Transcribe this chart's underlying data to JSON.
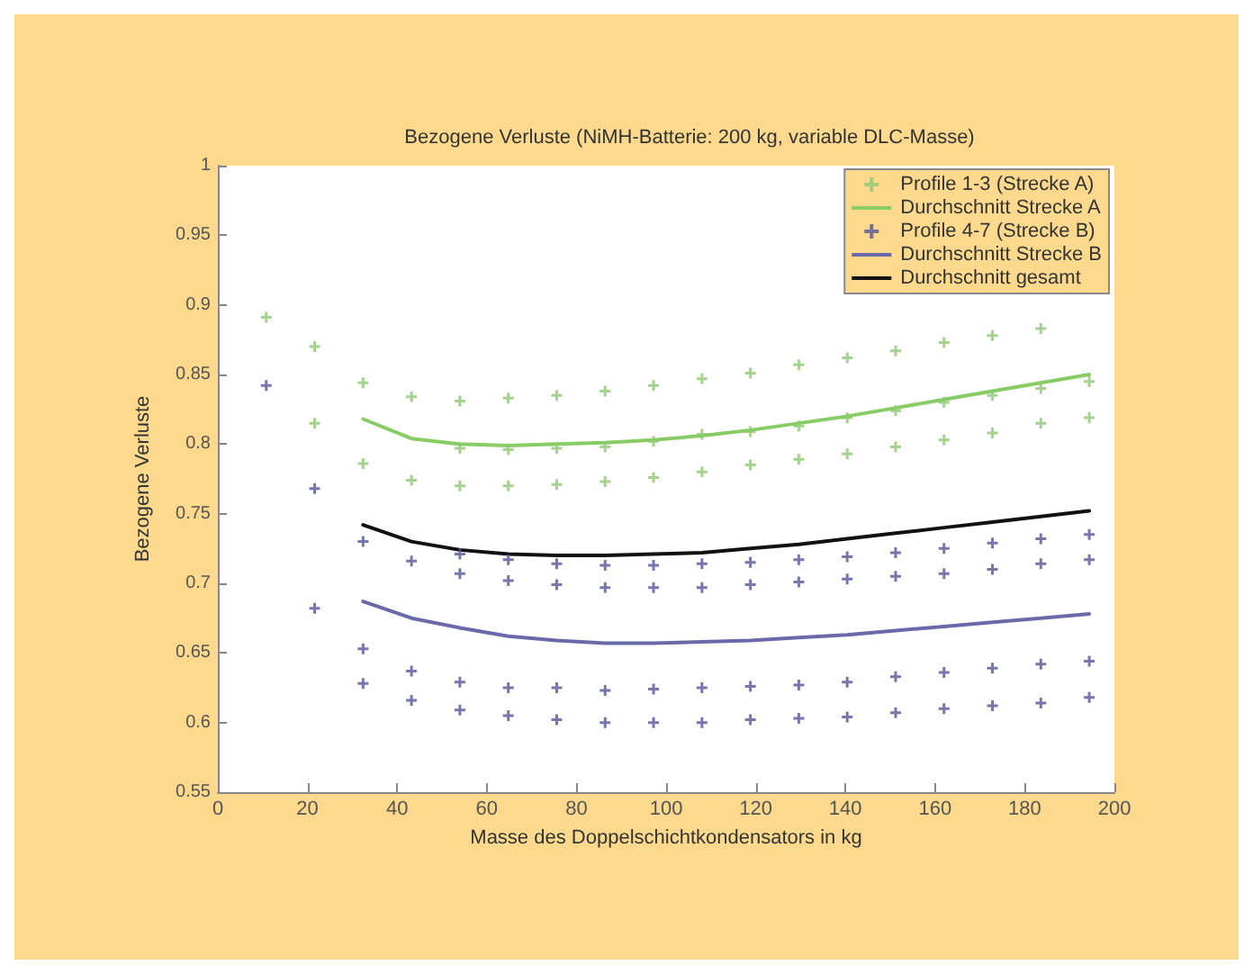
{
  "chart_data": {
    "type": "scatter",
    "title": "Bezogene Verluste (NiMH-Batterie: 200 kg, variable DLC-Masse)",
    "xlabel": "Masse des Doppelschichtkondensators in kg",
    "ylabel": "Bezogene Verluste",
    "xlim": [
      0,
      200
    ],
    "xticks": [
      0,
      20,
      40,
      60,
      80,
      100,
      120,
      140,
      160,
      180,
      200
    ],
    "ylim": [
      0.55,
      1
    ],
    "yticks": [
      0.55,
      0.6,
      0.65,
      0.7,
      0.75,
      0.8,
      0.85,
      0.9,
      0.95,
      1
    ],
    "grid": false,
    "legend": "top right",
    "series": [
      {
        "name": "Profile 1-3 (Strecke A)",
        "marker": "cross",
        "color": "#8cc870",
        "x": [
          10.8,
          21.6,
          21.6,
          32.4,
          32.4,
          43.2,
          43.2,
          54,
          54,
          54,
          64.8,
          64.8,
          64.8,
          75.6,
          75.6,
          75.6,
          86.4,
          86.4,
          86.4,
          97.2,
          97.2,
          97.2,
          108,
          108,
          108,
          118.8,
          118.8,
          118.8,
          129.6,
          129.6,
          129.6,
          140.4,
          140.4,
          140.4,
          151.2,
          151.2,
          151.2,
          162,
          162,
          162,
          172.8,
          172.8,
          172.8,
          183.6,
          183.6,
          183.6,
          194.4,
          194.4
        ],
        "values": [
          0.891,
          0.87,
          0.815,
          0.844,
          0.786,
          0.834,
          0.774,
          0.831,
          0.797,
          0.77,
          0.833,
          0.796,
          0.77,
          0.835,
          0.797,
          0.771,
          0.838,
          0.798,
          0.773,
          0.842,
          0.802,
          0.776,
          0.847,
          0.807,
          0.78,
          0.851,
          0.809,
          0.785,
          0.857,
          0.813,
          0.789,
          0.862,
          0.819,
          0.793,
          0.867,
          0.824,
          0.798,
          0.873,
          0.83,
          0.803,
          0.878,
          0.835,
          0.808,
          0.883,
          0.84,
          0.815,
          0.845,
          0.819
        ]
      },
      {
        "name": "Durchschnitt Strecke A",
        "type": "line",
        "marker": "none",
        "line_style": "solid",
        "color": "#88cc66",
        "x": [
          32.4,
          43.2,
          54,
          64.8,
          75.6,
          86.4,
          97.2,
          108,
          118.8,
          129.6,
          140.4,
          151.2,
          162,
          172.8,
          183.6,
          194.4
        ],
        "values": [
          0.818,
          0.804,
          0.8,
          0.799,
          0.8,
          0.801,
          0.803,
          0.806,
          0.81,
          0.815,
          0.82,
          0.826,
          0.832,
          0.838,
          0.844,
          0.85
        ]
      },
      {
        "name": "Profile 4-7 (Strecke B)",
        "marker": "cross",
        "color": "#55559a",
        "x": [
          10.8,
          21.6,
          21.6,
          32.4,
          32.4,
          32.4,
          43.2,
          43.2,
          43.2,
          54,
          54,
          54,
          54,
          64.8,
          64.8,
          64.8,
          64.8,
          75.6,
          75.6,
          75.6,
          75.6,
          86.4,
          86.4,
          86.4,
          86.4,
          97.2,
          97.2,
          97.2,
          97.2,
          108,
          108,
          108,
          108,
          118.8,
          118.8,
          118.8,
          118.8,
          129.6,
          129.6,
          129.6,
          129.6,
          140.4,
          140.4,
          140.4,
          140.4,
          151.2,
          151.2,
          151.2,
          151.2,
          162,
          162,
          162,
          162,
          172.8,
          172.8,
          172.8,
          172.8,
          183.6,
          183.6,
          183.6,
          183.6,
          194.4,
          194.4,
          194.4,
          194.4
        ],
        "values": [
          0.842,
          0.768,
          0.682,
          0.73,
          0.653,
          0.628,
          0.716,
          0.637,
          0.616,
          0.721,
          0.707,
          0.629,
          0.609,
          0.717,
          0.702,
          0.625,
          0.605,
          0.714,
          0.699,
          0.625,
          0.602,
          0.713,
          0.697,
          0.623,
          0.6,
          0.713,
          0.697,
          0.624,
          0.6,
          0.714,
          0.697,
          0.625,
          0.6,
          0.715,
          0.699,
          0.626,
          0.602,
          0.717,
          0.701,
          0.627,
          0.603,
          0.719,
          0.703,
          0.629,
          0.604,
          0.722,
          0.705,
          0.633,
          0.607,
          0.725,
          0.707,
          0.636,
          0.61,
          0.729,
          0.71,
          0.639,
          0.612,
          0.732,
          0.714,
          0.642,
          0.614,
          0.735,
          0.717,
          0.644,
          0.618
        ]
      },
      {
        "name": "Durchschnitt Strecke B",
        "type": "line",
        "marker": "none",
        "line_style": "solid",
        "color": "#6a6aaa",
        "x": [
          32.4,
          43.2,
          54,
          64.8,
          75.6,
          86.4,
          97.2,
          108,
          118.8,
          129.6,
          140.4,
          151.2,
          162,
          172.8,
          183.6,
          194.4
        ],
        "values": [
          0.687,
          0.675,
          0.668,
          0.662,
          0.659,
          0.657,
          0.657,
          0.658,
          0.659,
          0.661,
          0.663,
          0.666,
          0.669,
          0.672,
          0.675,
          0.678
        ]
      },
      {
        "name": "Durchschnitt gesamt",
        "type": "line",
        "marker": "none",
        "line_style": "solid",
        "color": "#111111",
        "x": [
          32.4,
          43.2,
          54,
          64.8,
          75.6,
          86.4,
          97.2,
          108,
          118.8,
          129.6,
          140.4,
          151.2,
          162,
          172.8,
          183.6,
          194.4
        ],
        "values": [
          0.742,
          0.73,
          0.724,
          0.721,
          0.72,
          0.72,
          0.721,
          0.722,
          0.725,
          0.728,
          0.732,
          0.736,
          0.74,
          0.744,
          0.748,
          0.752
        ]
      }
    ]
  }
}
